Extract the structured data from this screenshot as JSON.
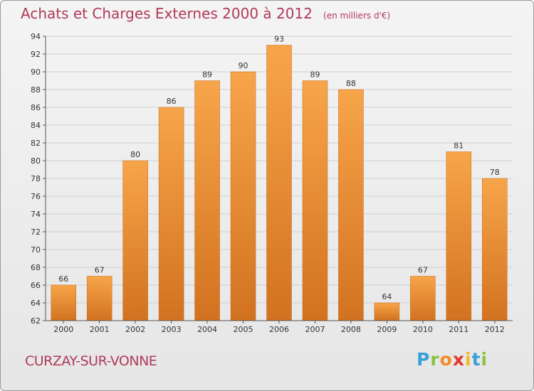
{
  "title": {
    "main": "Achats et Charges Externes 2000 à 2012",
    "unit": "(en milliers d'€)"
  },
  "city": "CURZAY-SUR-VONNE",
  "logo": {
    "text": "Proxiti",
    "colors": [
      "#3aa0d8",
      "#8ac43f",
      "#f28c28",
      "#e2342b",
      "#f2b81e",
      "#3aa0d8",
      "#8ac43f"
    ]
  },
  "chart_data": {
    "type": "bar",
    "categories": [
      "2000",
      "2001",
      "2002",
      "2003",
      "2004",
      "2005",
      "2006",
      "2007",
      "2008",
      "2009",
      "2010",
      "2011",
      "2012"
    ],
    "values": [
      66,
      67,
      80,
      86,
      89,
      90,
      93,
      89,
      88,
      64,
      67,
      81,
      78
    ],
    "ylim": [
      62,
      94
    ],
    "yticks": [
      62,
      64,
      66,
      68,
      70,
      72,
      74,
      76,
      78,
      80,
      82,
      84,
      86,
      88,
      90,
      92,
      94
    ],
    "grid": true,
    "bar_color_top": "#f7a54a",
    "bar_color_bottom": "#d27220"
  }
}
